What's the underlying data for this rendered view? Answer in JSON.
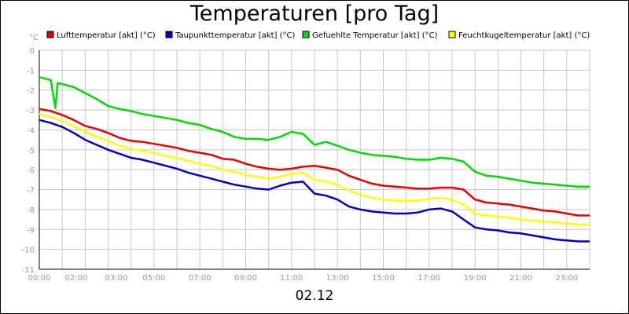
{
  "title": "Temperaturen [pro Tag]",
  "chart_data": {
    "type": "line",
    "title": "Temperaturen [pro Tag]",
    "xlabel": "02.12",
    "yunit": "°C",
    "xlim": [
      0,
      24
    ],
    "ylim": [
      -11,
      0
    ],
    "grid": true,
    "legend_position": "top",
    "x_ticks": [
      {
        "v": 0,
        "label": "00:00"
      },
      {
        "v": 2,
        "label": "02:00"
      },
      {
        "v": 3,
        "label": "03:00"
      },
      {
        "v": 5,
        "label": "05:00"
      },
      {
        "v": 7,
        "label": "07:00"
      },
      {
        "v": 9,
        "label": "09:00"
      },
      {
        "v": 11,
        "label": "11:00"
      },
      {
        "v": 13,
        "label": "13:00"
      },
      {
        "v": 15,
        "label": "15:00"
      },
      {
        "v": 17,
        "label": "17:00"
      },
      {
        "v": 19,
        "label": "19:00"
      },
      {
        "v": 21,
        "label": "21:00"
      },
      {
        "v": 23,
        "label": "23:00"
      }
    ],
    "y_ticks": [
      0,
      -1,
      -2,
      -3,
      -4,
      -5,
      -6,
      -7,
      -8,
      -9,
      -10,
      -11
    ],
    "series": [
      {
        "name": "Lufttemperatur [akt] (°C)",
        "color": "#ee0000",
        "x": [
          0,
          0.5,
          1,
          1.5,
          2,
          2.5,
          3,
          3.5,
          4,
          4.5,
          5,
          5.5,
          6,
          6.5,
          7,
          7.5,
          8,
          8.5,
          9,
          9.5,
          10,
          10.5,
          11,
          11.5,
          12,
          12.5,
          13,
          13.5,
          14,
          14.5,
          15,
          15.5,
          16,
          16.5,
          17,
          17.5,
          18,
          18.5,
          19,
          19.5,
          20,
          20.5,
          21,
          21.5,
          22,
          22.5,
          23,
          23.5,
          24
        ],
        "y": [
          -2.95,
          -3.05,
          -3.25,
          -3.5,
          -3.8,
          -3.95,
          -4.15,
          -4.4,
          -4.55,
          -4.6,
          -4.7,
          -4.8,
          -4.9,
          -5.05,
          -5.15,
          -5.25,
          -5.45,
          -5.5,
          -5.7,
          -5.85,
          -5.95,
          -6.0,
          -5.95,
          -5.85,
          -5.8,
          -5.9,
          -6.0,
          -6.3,
          -6.5,
          -6.7,
          -6.8,
          -6.85,
          -6.9,
          -6.95,
          -6.95,
          -6.9,
          -6.9,
          -7.0,
          -7.5,
          -7.65,
          -7.7,
          -7.75,
          -7.85,
          -7.95,
          -8.05,
          -8.1,
          -8.2,
          -8.3,
          -8.3
        ]
      },
      {
        "name": "Taupunkttemperatur [akt] (°C)",
        "color": "#0000cc",
        "x": [
          0,
          0.5,
          1,
          1.5,
          2,
          2.5,
          3,
          3.5,
          4,
          4.5,
          5,
          5.5,
          6,
          6.5,
          7,
          7.5,
          8,
          8.5,
          9,
          9.5,
          10,
          10.5,
          11,
          11.5,
          12,
          12.5,
          13,
          13.5,
          14,
          14.5,
          15,
          15.5,
          16,
          16.5,
          17,
          17.5,
          18,
          18.5,
          19,
          19.5,
          20,
          20.5,
          21,
          21.5,
          22,
          22.5,
          23,
          23.5,
          24
        ],
        "y": [
          -3.5,
          -3.65,
          -3.85,
          -4.15,
          -4.5,
          -4.75,
          -5.0,
          -5.2,
          -5.4,
          -5.5,
          -5.65,
          -5.8,
          -5.95,
          -6.15,
          -6.3,
          -6.45,
          -6.6,
          -6.75,
          -6.85,
          -6.95,
          -7.0,
          -6.8,
          -6.65,
          -6.6,
          -7.2,
          -7.3,
          -7.5,
          -7.85,
          -8.0,
          -8.1,
          -8.15,
          -8.2,
          -8.2,
          -8.15,
          -8.0,
          -7.95,
          -8.1,
          -8.5,
          -8.9,
          -9.0,
          -9.05,
          -9.15,
          -9.2,
          -9.3,
          -9.4,
          -9.5,
          -9.55,
          -9.6,
          -9.6
        ]
      },
      {
        "name": "Gefuehlte Temperatur [akt] (°C)",
        "color": "#00dd00",
        "x": [
          0,
          0.5,
          0.7,
          0.8,
          1,
          1.5,
          2,
          2.5,
          3,
          3.5,
          4,
          4.5,
          5,
          5.5,
          6,
          6.5,
          7,
          7.5,
          8,
          8.5,
          9,
          9.5,
          10,
          10.5,
          11,
          11.5,
          12,
          12.5,
          13,
          13.5,
          14,
          14.5,
          15,
          15.5,
          16,
          16.5,
          17,
          17.5,
          18,
          18.5,
          19,
          19.5,
          20,
          20.5,
          21,
          21.5,
          22,
          22.5,
          23,
          23.5,
          24
        ],
        "y": [
          -1.35,
          -1.5,
          -2.9,
          -1.65,
          -1.7,
          -1.85,
          -2.15,
          -2.45,
          -2.8,
          -2.95,
          -3.05,
          -3.2,
          -3.3,
          -3.4,
          -3.5,
          -3.65,
          -3.75,
          -3.95,
          -4.1,
          -4.35,
          -4.45,
          -4.45,
          -4.5,
          -4.35,
          -4.1,
          -4.2,
          -4.75,
          -4.6,
          -4.8,
          -5.0,
          -5.15,
          -5.25,
          -5.3,
          -5.35,
          -5.45,
          -5.5,
          -5.5,
          -5.4,
          -5.45,
          -5.6,
          -6.1,
          -6.3,
          -6.35,
          -6.45,
          -6.55,
          -6.65,
          -6.7,
          -6.75,
          -6.8,
          -6.85,
          -6.85
        ]
      },
      {
        "name": "Feuchtkugeltemperatur [akt] (°C)",
        "color": "#ffff00",
        "x": [
          0,
          0.5,
          1,
          1.5,
          2,
          2.5,
          3,
          3.5,
          4,
          4.5,
          5,
          5.5,
          6,
          6.5,
          7,
          7.5,
          8,
          8.5,
          9,
          9.5,
          10,
          10.5,
          11,
          11.5,
          12,
          12.5,
          13,
          13.5,
          14,
          14.5,
          15,
          15.5,
          16,
          16.5,
          17,
          17.5,
          18,
          18.5,
          19,
          19.5,
          20,
          20.5,
          21,
          21.5,
          22,
          22.5,
          23,
          23.5,
          24
        ],
        "y": [
          -3.2,
          -3.35,
          -3.55,
          -3.8,
          -4.1,
          -4.35,
          -4.55,
          -4.8,
          -4.95,
          -5.05,
          -5.15,
          -5.3,
          -5.4,
          -5.55,
          -5.7,
          -5.8,
          -6.0,
          -6.1,
          -6.25,
          -6.35,
          -6.45,
          -6.35,
          -6.2,
          -6.15,
          -6.5,
          -6.6,
          -6.75,
          -7.05,
          -7.25,
          -7.4,
          -7.5,
          -7.55,
          -7.55,
          -7.55,
          -7.45,
          -7.4,
          -7.5,
          -7.75,
          -8.2,
          -8.3,
          -8.35,
          -8.4,
          -8.5,
          -8.55,
          -8.6,
          -8.65,
          -8.7,
          -8.75,
          -8.75
        ]
      }
    ]
  }
}
